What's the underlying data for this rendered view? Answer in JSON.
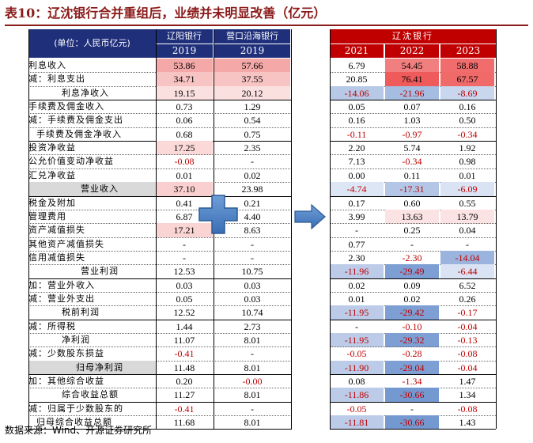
{
  "title": "表10：辽沈银行合并重组后，业绩并未明显改善（亿元）",
  "header": {
    "unit": "(单位：人民币亿元)",
    "liaoyang": "辽阳银行",
    "yingkou": "营口沿海银行",
    "liaoshen": "辽沈银行",
    "years_left": [
      "2019",
      "2019"
    ],
    "years_right": [
      "2021",
      "2022",
      "2023"
    ]
  },
  "colors": {
    "navy": "#1f2f7a",
    "red_header": "#c00000",
    "negative_text": "#c00000",
    "title": "#8b1a1a",
    "shade": "#d9d9d9"
  },
  "icons": {
    "plus": "plus-icon",
    "arrow": "arrow-right-icon"
  },
  "rows": [
    {
      "label": "利息收入",
      "indent": 0,
      "v": [
        "53.86",
        "57.66",
        "6.79",
        "54.45",
        "58.88"
      ],
      "bg": [
        "#f4a8a8",
        "#f4a8a8",
        "",
        "#f27f7f",
        "#f16c6c"
      ]
    },
    {
      "label": "减：利息支出",
      "indent": 0,
      "v": [
        "34.71",
        "37.55",
        "20.85",
        "76.41",
        "67.57"
      ],
      "bg": [
        "#f7c3c3",
        "#f7c3c3",
        "",
        "#ef5a5a",
        "#f06a6a"
      ]
    },
    {
      "label": "利息净收入",
      "indent": 2,
      "v": [
        "19.15",
        "20.12",
        "-14.06",
        "-21.96",
        "-8.69"
      ],
      "bg": [
        "#fbe0e0",
        "#fbe0e0",
        "#b7c9e6",
        "#a6bde2",
        "#c8d6ee"
      ]
    },
    {
      "label": "手续费及佣金收入",
      "indent": 0,
      "v": [
        "0.73",
        "1.29",
        "0.05",
        "0.07",
        "0.16"
      ],
      "bg": [
        "",
        "",
        "",
        "",
        ""
      ]
    },
    {
      "label": "减：手续费及佣金支出",
      "indent": 0,
      "v": [
        "0.06",
        "0.54",
        "0.16",
        "1.03",
        "0.50"
      ],
      "bg": [
        "",
        "",
        "",
        "",
        ""
      ]
    },
    {
      "label": "手续费及佣金净收入",
      "indent": 1,
      "v": [
        "0.68",
        "0.75",
        "-0.11",
        "-0.97",
        "-0.34"
      ],
      "bg": [
        "",
        "",
        "",
        "",
        ""
      ]
    },
    {
      "label": "投资净收益",
      "indent": 0,
      "v": [
        "17.25",
        "2.35",
        "2.20",
        "5.74",
        "1.92"
      ],
      "bg": [
        "#fbd9d9",
        "",
        "",
        "",
        ""
      ]
    },
    {
      "label": "公允价值变动净收益",
      "indent": 0,
      "v": [
        "-0.08",
        "-",
        "7.13",
        "-0.34",
        "0.98"
      ],
      "bg": [
        "",
        "",
        "",
        "",
        ""
      ]
    },
    {
      "label": "汇兑净收益",
      "indent": 0,
      "v": [
        "0.01",
        "0.02",
        "0.00",
        "0.11",
        "0.01"
      ],
      "bg": [
        "",
        "",
        "",
        "",
        ""
      ]
    },
    {
      "label": "营业收入",
      "indent": 3,
      "v": [
        "37.10",
        "23.98",
        "-4.74",
        "-17.31",
        "-6.09"
      ],
      "bg": [
        "#f9cfcf",
        "",
        "#dde6f4",
        "#b4c6e5",
        "#dae3f3"
      ],
      "shaded": true
    },
    {
      "label": "税金及附加",
      "indent": 0,
      "v": [
        "0.41",
        "0.21",
        "0.17",
        "0.60",
        "0.55"
      ],
      "bg": [
        "",
        "",
        "",
        "",
        ""
      ]
    },
    {
      "label": "管理费用",
      "indent": 0,
      "v": [
        "6.87",
        "4.40",
        "3.99",
        "13.63",
        "13.79"
      ],
      "bg": [
        "",
        "",
        "",
        "#fbe3e3",
        "#fbe3e3"
      ]
    },
    {
      "label": "资产减值损失",
      "indent": 0,
      "v": [
        "17.21",
        "8.63",
        "-",
        "0.25",
        "0.04"
      ],
      "bg": [
        "#fad3d3",
        "",
        "",
        "",
        ""
      ]
    },
    {
      "label": "其他资产减值损失",
      "indent": 0,
      "v": [
        "-",
        "-",
        "0.77",
        "-",
        "-"
      ],
      "bg": [
        "",
        "",
        "",
        "",
        ""
      ]
    },
    {
      "label": "信用减值损失",
      "indent": 0,
      "v": [
        "-",
        "-",
        "2.30",
        "-2.30",
        "-14.04"
      ],
      "bg": [
        "",
        "",
        "",
        "",
        "#9ab4de"
      ]
    },
    {
      "label": "营业利润",
      "indent": 3,
      "v": [
        "12.53",
        "10.75",
        "-11.96",
        "-29.49",
        "-6.44"
      ],
      "bg": [
        "",
        "",
        "#bccce8",
        "#7e9fd4",
        "#dae3f3"
      ]
    },
    {
      "label": "加：营业外收入",
      "indent": 0,
      "v": [
        "0.03",
        "0.03",
        "0.02",
        "0.09",
        "6.52"
      ],
      "bg": [
        "",
        "",
        "",
        "",
        ""
      ]
    },
    {
      "label": "减：营业外支出",
      "indent": 0,
      "v": [
        "0.05",
        "0.03",
        "0.01",
        "0.02",
        "0.26"
      ],
      "bg": [
        "",
        "",
        "",
        "",
        ""
      ]
    },
    {
      "label": "税前利润",
      "indent": 2,
      "v": [
        "12.52",
        "10.74",
        "-11.95",
        "-29.42",
        "-0.17"
      ],
      "bg": [
        "",
        "",
        "#bccce8",
        "#7e9fd4",
        ""
      ]
    },
    {
      "label": "减：所得税",
      "indent": 0,
      "v": [
        "1.44",
        "2.73",
        "-",
        "-0.10",
        "-0.04"
      ],
      "bg": [
        "",
        "",
        "",
        "",
        ""
      ]
    },
    {
      "label": "净利润",
      "indent": 2,
      "v": [
        "11.07",
        "8.01",
        "-11.95",
        "-29.32",
        "-0.13"
      ],
      "bg": [
        "",
        "",
        "#bccce8",
        "#7e9fd4",
        ""
      ]
    },
    {
      "label": "减：少数股东损益",
      "indent": 0,
      "v": [
        "-0.41",
        "-",
        "-0.05",
        "-0.28",
        "-0.08"
      ],
      "bg": [
        "",
        "",
        "",
        "",
        ""
      ]
    },
    {
      "label": "归母净利润",
      "indent": 3,
      "v": [
        "11.48",
        "8.01",
        "-11.90",
        "-29.04",
        "-0.04"
      ],
      "bg": [
        "",
        "",
        "#bccce8",
        "#7e9fd4",
        ""
      ],
      "shaded": true
    },
    {
      "label": "加：其他综合收益",
      "indent": 0,
      "v": [
        "0.20",
        "-0.00",
        "0.08",
        "-1.34",
        "1.47"
      ],
      "bg": [
        "",
        "",
        "",
        "",
        ""
      ]
    },
    {
      "label": "综合收益总额",
      "indent": 2,
      "v": [
        "11.27",
        "8.01",
        "-11.86",
        "-30.66",
        "1.34"
      ],
      "bg": [
        "",
        "",
        "#bccce8",
        "#7499d1",
        ""
      ]
    },
    {
      "label": "减：归属于少数股东的",
      "indent": 0,
      "v": [
        "-0.41",
        "-",
        "-0.05",
        "-",
        "-0.08"
      ],
      "bg": [
        "",
        "",
        "",
        "",
        ""
      ]
    },
    {
      "label": "归母综合收益总额",
      "indent": 1,
      "v": [
        "11.68",
        "8.01",
        "-11.81",
        "-30.66",
        "1.43"
      ],
      "bg": [
        "",
        "",
        "#bccce8",
        "#7499d1",
        ""
      ]
    }
  ],
  "source": "数据来源：Wind、开源证券研究所"
}
